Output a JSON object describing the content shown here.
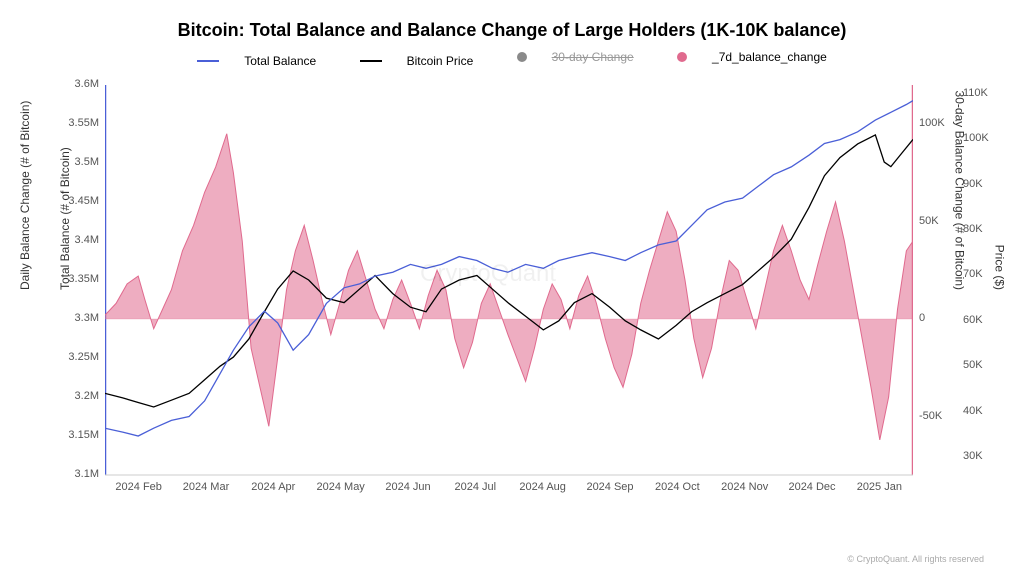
{
  "title": "Bitcoin: Total Balance and Balance Change of Large Holders (1K-10K balance)",
  "legend": {
    "total_balance": "Total Balance",
    "bitcoin_price": "Bitcoin Price",
    "change_30d": "30-day Change",
    "change_7d": "_7d_balance_change"
  },
  "attribution": "© CryptoQuant. All rights reserved",
  "watermark": "CryptoQuant",
  "colors": {
    "total_balance": "#4a5fd7",
    "bitcoin_price": "#000000",
    "change_30d": "#8a8a8a",
    "change_7d": "#e06a8e",
    "change_7d_fill": "rgba(224,106,142,0.55)",
    "left_axis_line": "#4a5fd7",
    "right_axis_30d_line": "#e06a8e",
    "right_axis_price_line": "#000000",
    "bg": "#ffffff",
    "tick_text": "#555555"
  },
  "axes": {
    "left_y_label": "Daily Balance Change (# of Bitcoin)",
    "left_y2_label": "Total Balance (# of Bitcoin)",
    "right_y_30d_label": "30-day Balance Change (# of Bitcoin)",
    "right_y_price_label": "Price ($)",
    "total_balance_ticks": [
      {
        "v": 3100000,
        "label": "3.1M"
      },
      {
        "v": 3150000,
        "label": "3.15M"
      },
      {
        "v": 3200000,
        "label": "3.2M"
      },
      {
        "v": 3250000,
        "label": "3.25M"
      },
      {
        "v": 3300000,
        "label": "3.3M"
      },
      {
        "v": 3350000,
        "label": "3.35M"
      },
      {
        "v": 3400000,
        "label": "3.4M"
      },
      {
        "v": 3450000,
        "label": "3.45M"
      },
      {
        "v": 3500000,
        "label": "3.5M"
      },
      {
        "v": 3550000,
        "label": "3.55M"
      },
      {
        "v": 3600000,
        "label": "3.6M"
      }
    ],
    "total_balance_range": [
      3100000,
      3600000
    ],
    "change_30d_ticks": [
      {
        "v": -50000,
        "label": "-50K"
      },
      {
        "v": 0,
        "label": "0"
      },
      {
        "v": 50000,
        "label": "50K"
      },
      {
        "v": 100000,
        "label": "100K"
      }
    ],
    "change_30d_range": [
      -80000,
      120000
    ],
    "price_ticks": [
      {
        "v": 30000,
        "label": "30K"
      },
      {
        "v": 40000,
        "label": "40K"
      },
      {
        "v": 50000,
        "label": "50K"
      },
      {
        "v": 60000,
        "label": "60K"
      },
      {
        "v": 70000,
        "label": "70K"
      },
      {
        "v": 80000,
        "label": "80K"
      },
      {
        "v": 90000,
        "label": "90K"
      },
      {
        "v": 100000,
        "label": "100K"
      },
      {
        "v": 110000,
        "label": "110K"
      }
    ],
    "price_range": [
      26000,
      112000
    ],
    "x_ticks": [
      "2024 Feb",
      "2024 Mar",
      "2024 Apr",
      "2024 May",
      "2024 Jun",
      "2024 Jul",
      "2024 Aug",
      "2024 Sep",
      "2024 Oct",
      "2024 Nov",
      "2024 Dec",
      "2025 Jan"
    ],
    "x_range": [
      0,
      365
    ]
  },
  "series": {
    "total_balance": [
      [
        0,
        3160000
      ],
      [
        8,
        3155000
      ],
      [
        15,
        3150000
      ],
      [
        22,
        3160000
      ],
      [
        30,
        3170000
      ],
      [
        38,
        3175000
      ],
      [
        45,
        3195000
      ],
      [
        52,
        3230000
      ],
      [
        58,
        3260000
      ],
      [
        65,
        3290000
      ],
      [
        72,
        3310000
      ],
      [
        78,
        3295000
      ],
      [
        85,
        3260000
      ],
      [
        92,
        3280000
      ],
      [
        100,
        3320000
      ],
      [
        108,
        3340000
      ],
      [
        115,
        3345000
      ],
      [
        122,
        3355000
      ],
      [
        130,
        3360000
      ],
      [
        138,
        3370000
      ],
      [
        145,
        3365000
      ],
      [
        152,
        3370000
      ],
      [
        160,
        3380000
      ],
      [
        168,
        3375000
      ],
      [
        175,
        3365000
      ],
      [
        182,
        3360000
      ],
      [
        190,
        3370000
      ],
      [
        198,
        3365000
      ],
      [
        205,
        3375000
      ],
      [
        212,
        3380000
      ],
      [
        220,
        3385000
      ],
      [
        228,
        3380000
      ],
      [
        235,
        3375000
      ],
      [
        242,
        3385000
      ],
      [
        250,
        3395000
      ],
      [
        258,
        3400000
      ],
      [
        265,
        3420000
      ],
      [
        272,
        3440000
      ],
      [
        280,
        3450000
      ],
      [
        288,
        3455000
      ],
      [
        295,
        3470000
      ],
      [
        302,
        3485000
      ],
      [
        310,
        3495000
      ],
      [
        318,
        3510000
      ],
      [
        325,
        3525000
      ],
      [
        332,
        3530000
      ],
      [
        340,
        3540000
      ],
      [
        348,
        3555000
      ],
      [
        355,
        3565000
      ],
      [
        362,
        3575000
      ],
      [
        365,
        3580000
      ]
    ],
    "bitcoin_price": [
      [
        0,
        44000
      ],
      [
        8,
        43000
      ],
      [
        15,
        42000
      ],
      [
        22,
        41000
      ],
      [
        30,
        42500
      ],
      [
        38,
        44000
      ],
      [
        45,
        47000
      ],
      [
        52,
        50000
      ],
      [
        58,
        52000
      ],
      [
        65,
        56000
      ],
      [
        72,
        62000
      ],
      [
        78,
        67000
      ],
      [
        85,
        71000
      ],
      [
        92,
        69000
      ],
      [
        100,
        65000
      ],
      [
        108,
        64000
      ],
      [
        115,
        67000
      ],
      [
        122,
        70000
      ],
      [
        130,
        66000
      ],
      [
        138,
        63000
      ],
      [
        145,
        62000
      ],
      [
        152,
        67000
      ],
      [
        160,
        69000
      ],
      [
        168,
        70000
      ],
      [
        175,
        67000
      ],
      [
        182,
        64000
      ],
      [
        190,
        61000
      ],
      [
        198,
        58000
      ],
      [
        205,
        60000
      ],
      [
        212,
        64000
      ],
      [
        220,
        66000
      ],
      [
        228,
        63000
      ],
      [
        235,
        60000
      ],
      [
        242,
        58000
      ],
      [
        250,
        56000
      ],
      [
        258,
        59000
      ],
      [
        265,
        62000
      ],
      [
        272,
        64000
      ],
      [
        280,
        66000
      ],
      [
        288,
        68000
      ],
      [
        295,
        71000
      ],
      [
        302,
        74000
      ],
      [
        310,
        78000
      ],
      [
        318,
        85000
      ],
      [
        325,
        92000
      ],
      [
        332,
        96000
      ],
      [
        340,
        99000
      ],
      [
        348,
        101000
      ],
      [
        352,
        95000
      ],
      [
        355,
        94000
      ],
      [
        360,
        97000
      ],
      [
        365,
        100000
      ]
    ],
    "change_7d": [
      [
        0,
        2000
      ],
      [
        5,
        8000
      ],
      [
        10,
        18000
      ],
      [
        15,
        22000
      ],
      [
        18,
        10000
      ],
      [
        22,
        -5000
      ],
      [
        26,
        5000
      ],
      [
        30,
        15000
      ],
      [
        35,
        35000
      ],
      [
        40,
        48000
      ],
      [
        45,
        65000
      ],
      [
        50,
        78000
      ],
      [
        55,
        95000
      ],
      [
        58,
        75000
      ],
      [
        62,
        40000
      ],
      [
        66,
        -15000
      ],
      [
        70,
        -35000
      ],
      [
        74,
        -55000
      ],
      [
        78,
        -20000
      ],
      [
        82,
        15000
      ],
      [
        86,
        35000
      ],
      [
        90,
        48000
      ],
      [
        94,
        30000
      ],
      [
        98,
        10000
      ],
      [
        102,
        -8000
      ],
      [
        106,
        8000
      ],
      [
        110,
        25000
      ],
      [
        114,
        35000
      ],
      [
        118,
        20000
      ],
      [
        122,
        5000
      ],
      [
        126,
        -5000
      ],
      [
        130,
        10000
      ],
      [
        134,
        20000
      ],
      [
        138,
        8000
      ],
      [
        142,
        -5000
      ],
      [
        146,
        12000
      ],
      [
        150,
        25000
      ],
      [
        154,
        15000
      ],
      [
        158,
        -10000
      ],
      [
        162,
        -25000
      ],
      [
        166,
        -12000
      ],
      [
        170,
        8000
      ],
      [
        174,
        18000
      ],
      [
        178,
        5000
      ],
      [
        182,
        -8000
      ],
      [
        186,
        -20000
      ],
      [
        190,
        -32000
      ],
      [
        194,
        -15000
      ],
      [
        198,
        5000
      ],
      [
        202,
        18000
      ],
      [
        206,
        10000
      ],
      [
        210,
        -5000
      ],
      [
        214,
        12000
      ],
      [
        218,
        22000
      ],
      [
        222,
        8000
      ],
      [
        226,
        -10000
      ],
      [
        230,
        -25000
      ],
      [
        234,
        -35000
      ],
      [
        238,
        -18000
      ],
      [
        242,
        8000
      ],
      [
        246,
        25000
      ],
      [
        250,
        40000
      ],
      [
        254,
        55000
      ],
      [
        258,
        45000
      ],
      [
        262,
        20000
      ],
      [
        266,
        -10000
      ],
      [
        270,
        -30000
      ],
      [
        274,
        -15000
      ],
      [
        278,
        10000
      ],
      [
        282,
        30000
      ],
      [
        286,
        25000
      ],
      [
        290,
        10000
      ],
      [
        294,
        -5000
      ],
      [
        298,
        15000
      ],
      [
        302,
        35000
      ],
      [
        306,
        48000
      ],
      [
        310,
        35000
      ],
      [
        314,
        20000
      ],
      [
        318,
        10000
      ],
      [
        322,
        28000
      ],
      [
        326,
        45000
      ],
      [
        330,
        60000
      ],
      [
        334,
        40000
      ],
      [
        338,
        15000
      ],
      [
        342,
        -10000
      ],
      [
        346,
        -35000
      ],
      [
        350,
        -62000
      ],
      [
        354,
        -40000
      ],
      [
        358,
        5000
      ],
      [
        362,
        35000
      ],
      [
        365,
        40000
      ]
    ]
  }
}
